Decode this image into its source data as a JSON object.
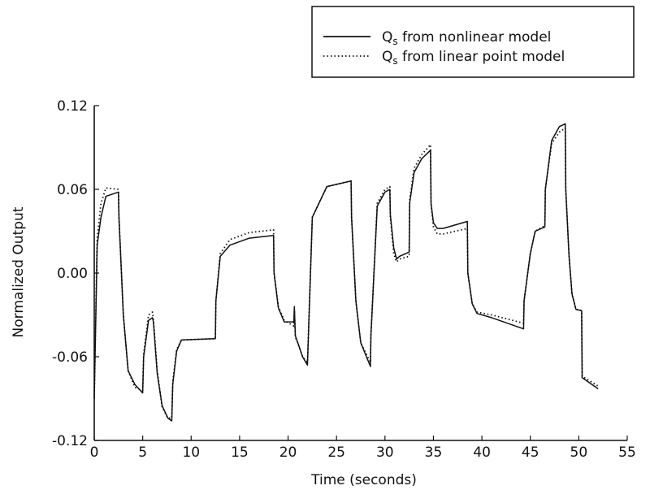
{
  "chart_data": {
    "type": "line",
    "xlabel": "Time (seconds)",
    "ylabel": "Normalized Output",
    "xlim": [
      0,
      55
    ],
    "ylim": [
      -0.12,
      0.12
    ],
    "xticks": [
      0,
      5,
      10,
      15,
      20,
      25,
      30,
      35,
      40,
      45,
      50,
      55
    ],
    "xtick_labels": [
      "0",
      "5",
      "10",
      "15",
      "20",
      "25",
      "30",
      "35",
      "40",
      "45",
      "50",
      "55"
    ],
    "yticks": [
      -0.12,
      -0.06,
      0.0,
      0.06,
      0.12
    ],
    "ytick_labels": [
      "-0.12",
      "-0.06",
      "0.00",
      "0.06",
      "0.12"
    ],
    "grid": false,
    "legend_position": "top-right",
    "series": [
      {
        "name": "Qs from nonlinear model",
        "legend_main": "Q",
        "legend_sub": "s",
        "legend_rest": " from nonlinear model",
        "style": "solid",
        "color": "#111111",
        "x": [
          0.0,
          0.3,
          0.7,
          1.2,
          2.5,
          2.55,
          3.0,
          3.5,
          4.2,
          5.0,
          5.1,
          5.6,
          6.0,
          6.1,
          6.5,
          7.0,
          7.6,
          8.0,
          8.1,
          8.5,
          9.0,
          12.5,
          12.55,
          13.0,
          14.0,
          16.0,
          18.5,
          18.55,
          19.0,
          19.6,
          20.6,
          20.65,
          20.75,
          21.0,
          21.5,
          22.0,
          22.5,
          24.0,
          26.5,
          26.55,
          27.0,
          27.5,
          28.5,
          28.55,
          29.2,
          30.0,
          30.5,
          30.55,
          30.9,
          31.2,
          31.5,
          32.5,
          32.55,
          33.0,
          33.8,
          34.7,
          34.75,
          35.0,
          35.4,
          36.0,
          38.5,
          38.55,
          39.0,
          39.5,
          41.0,
          44.3,
          44.35,
          45.0,
          45.5,
          46.5,
          46.55,
          47.2,
          48.0,
          48.6,
          48.65,
          49.0,
          49.3,
          49.7,
          50.3,
          50.35,
          52.0
        ],
        "y": [
          -0.09,
          0.02,
          0.04,
          0.055,
          0.058,
          0.04,
          -0.03,
          -0.07,
          -0.08,
          -0.086,
          -0.06,
          -0.034,
          -0.032,
          -0.035,
          -0.072,
          -0.095,
          -0.104,
          -0.106,
          -0.08,
          -0.056,
          -0.048,
          -0.047,
          -0.02,
          0.012,
          0.02,
          0.025,
          0.027,
          0.0,
          -0.025,
          -0.035,
          -0.035,
          -0.024,
          -0.045,
          -0.05,
          -0.06,
          -0.066,
          0.04,
          0.062,
          0.066,
          0.04,
          -0.02,
          -0.05,
          -0.067,
          -0.045,
          0.048,
          0.058,
          0.06,
          0.042,
          0.018,
          0.01,
          0.012,
          0.015,
          0.05,
          0.072,
          0.082,
          0.088,
          0.05,
          0.036,
          0.032,
          0.032,
          0.037,
          0.0,
          -0.022,
          -0.029,
          -0.032,
          -0.04,
          -0.02,
          0.014,
          0.03,
          0.033,
          0.06,
          0.095,
          0.105,
          0.107,
          0.06,
          0.012,
          -0.015,
          -0.026,
          -0.027,
          -0.075,
          -0.083
        ]
      },
      {
        "name": "Qs from linear point model",
        "legend_main": "Q",
        "legend_sub": "s",
        "legend_rest": " from linear point model",
        "style": "dotted",
        "color": "#111111",
        "x": [
          0.0,
          0.3,
          0.7,
          1.2,
          2.5,
          2.55,
          3.0,
          3.5,
          4.2,
          5.0,
          5.1,
          5.6,
          6.0,
          6.1,
          6.5,
          7.0,
          7.6,
          8.0,
          8.1,
          8.5,
          9.0,
          12.5,
          12.55,
          13.0,
          14.0,
          16.0,
          18.5,
          18.55,
          19.0,
          19.6,
          20.6,
          20.65,
          20.75,
          21.0,
          21.5,
          22.0,
          22.5,
          24.0,
          26.5,
          26.55,
          27.0,
          27.5,
          28.5,
          28.55,
          29.2,
          30.0,
          30.5,
          30.55,
          30.9,
          31.2,
          31.5,
          32.5,
          32.55,
          33.0,
          33.8,
          34.7,
          34.75,
          35.0,
          35.4,
          36.0,
          38.5,
          38.55,
          39.0,
          39.5,
          41.0,
          44.3,
          44.35,
          45.0,
          45.5,
          46.5,
          46.55,
          47.2,
          48.0,
          48.6,
          48.65,
          49.0,
          49.3,
          49.7,
          50.3,
          50.35,
          52.0
        ],
        "y": [
          -0.09,
          0.025,
          0.05,
          0.061,
          0.06,
          0.04,
          -0.03,
          -0.07,
          -0.082,
          -0.084,
          -0.058,
          -0.03,
          -0.028,
          -0.033,
          -0.07,
          -0.096,
          -0.104,
          -0.104,
          -0.078,
          -0.055,
          -0.048,
          -0.047,
          -0.02,
          0.014,
          0.024,
          0.029,
          0.031,
          0.0,
          -0.024,
          -0.034,
          -0.038,
          -0.027,
          -0.046,
          -0.05,
          -0.06,
          -0.064,
          0.04,
          0.062,
          0.066,
          0.04,
          -0.02,
          -0.05,
          -0.064,
          -0.045,
          0.05,
          0.06,
          0.062,
          0.04,
          0.014,
          0.008,
          0.01,
          0.012,
          0.052,
          0.075,
          0.085,
          0.092,
          0.05,
          0.033,
          0.028,
          0.028,
          0.032,
          0.0,
          -0.022,
          -0.028,
          -0.03,
          -0.036,
          -0.02,
          0.014,
          0.03,
          0.034,
          0.06,
          0.093,
          0.101,
          0.104,
          0.06,
          0.012,
          -0.015,
          -0.026,
          -0.027,
          -0.074,
          -0.081
        ]
      }
    ]
  }
}
